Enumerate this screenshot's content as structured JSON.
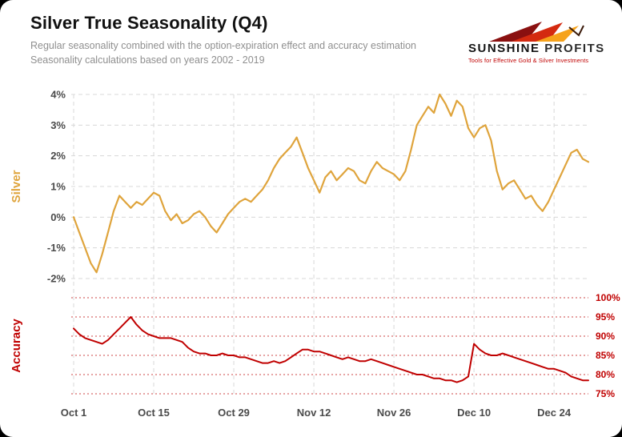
{
  "header": {
    "title": "Silver True Seasonality (Q4)",
    "subtitle_line1": "Regular seasonality combined with the option-expiration effect and accuracy estimation",
    "subtitle_line2": "Seasonality calculations based on years 2002 - 2019"
  },
  "logo": {
    "name_part1": "SUNSHINE",
    "name_part2": "PROFITS",
    "tagline": "Tools for Effective Gold & Silver Investments"
  },
  "chart_data": {
    "type": "line",
    "title": "Silver True Seasonality (Q4)",
    "grid": "dashed horizontal and vertical gridlines",
    "legend_position": "none",
    "x": {
      "n": 91,
      "start_label": "Oct 1",
      "ticks": [
        {
          "label": "Oct 1",
          "i": 0
        },
        {
          "label": "Oct 15",
          "i": 14
        },
        {
          "label": "Oct 29",
          "i": 28
        },
        {
          "label": "Nov 12",
          "i": 42
        },
        {
          "label": "Nov 26",
          "i": 56
        },
        {
          "label": "Dec 10",
          "i": 70
        },
        {
          "label": "Dec 24",
          "i": 84
        }
      ]
    },
    "panels": [
      {
        "name": "silver",
        "ylabel": "Silver",
        "unit": "%",
        "ylim": [
          -2,
          4
        ],
        "yticks": [
          4,
          3,
          2,
          1,
          0,
          -1,
          -2
        ],
        "ytick_suffix": "%",
        "line_color": "#DFA43C",
        "gridline_color": "#d8d8d8",
        "values": [
          0,
          -0.5,
          -1,
          -1.5,
          -1.8,
          -1.2,
          -0.5,
          0.2,
          0.7,
          0.5,
          0.3,
          0.5,
          0.4,
          0.6,
          0.8,
          0.7,
          0.2,
          -0.1,
          0.1,
          -0.2,
          -0.1,
          0.1,
          0.2,
          0,
          -0.3,
          -0.5,
          -0.2,
          0.1,
          0.3,
          0.5,
          0.6,
          0.5,
          0.7,
          0.9,
          1.2,
          1.6,
          1.9,
          2.1,
          2.3,
          2.6,
          2.1,
          1.6,
          1.2,
          0.8,
          1.3,
          1.5,
          1.2,
          1.4,
          1.6,
          1.5,
          1.2,
          1.1,
          1.5,
          1.8,
          1.6,
          1.5,
          1.4,
          1.2,
          1.5,
          2.2,
          3,
          3.3,
          3.6,
          3.4,
          4,
          3.7,
          3.3,
          3.8,
          3.6,
          2.9,
          2.6,
          2.9,
          3,
          2.5,
          1.5,
          0.9,
          1.1,
          1.2,
          0.9,
          0.6,
          0.7,
          0.4,
          0.2,
          0.5,
          0.9,
          1.3,
          1.7,
          2.1,
          2.2,
          1.9,
          1.8
        ]
      },
      {
        "name": "accuracy",
        "ylabel": "Accuracy",
        "unit": "%",
        "ylim": [
          75,
          100
        ],
        "yticks": [
          100,
          95,
          90,
          85,
          80,
          75
        ],
        "ytick_suffix": "%",
        "line_color": "#C00000",
        "gridline_color": "#cc4444",
        "values": [
          92,
          90.5,
          89.5,
          89,
          88.5,
          88,
          89,
          90.5,
          92,
          93.5,
          95,
          93,
          91.5,
          90.5,
          90,
          89.5,
          89.5,
          89.5,
          89,
          88.5,
          87,
          86,
          85.5,
          85.5,
          85,
          85,
          85.5,
          85,
          85,
          84.5,
          84.5,
          84,
          83.5,
          83,
          83,
          83.5,
          83,
          83.5,
          84.5,
          85.5,
          86.5,
          86.5,
          86,
          86,
          85.5,
          85,
          84.5,
          84,
          84.5,
          84,
          83.5,
          83.5,
          84,
          83.5,
          83,
          82.5,
          82,
          81.5,
          81,
          80.5,
          80,
          80,
          79.5,
          79,
          79,
          78.5,
          78.5,
          78,
          78.5,
          79.5,
          88,
          86.5,
          85.5,
          85,
          85,
          85.5,
          85,
          84.5,
          84,
          83.5,
          83,
          82.5,
          82,
          81.5,
          81.5,
          81,
          80.5,
          79.5,
          79,
          78.5,
          78.5
        ]
      }
    ]
  }
}
